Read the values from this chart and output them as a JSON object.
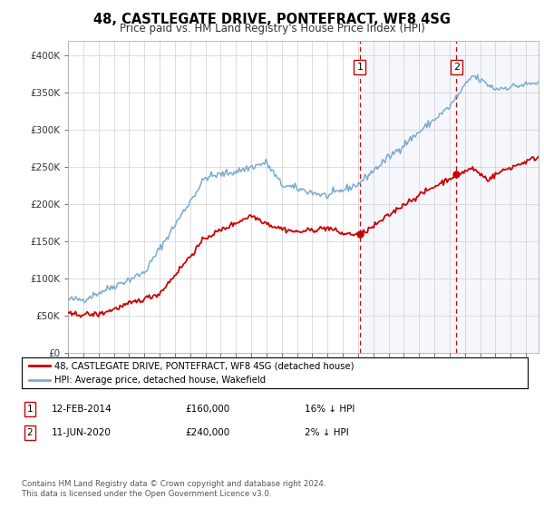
{
  "title": "48, CASTLEGATE DRIVE, PONTEFRACT, WF8 4SG",
  "subtitle": "Price paid vs. HM Land Registry's House Price Index (HPI)",
  "ylabel_ticks": [
    "£0",
    "£50K",
    "£100K",
    "£150K",
    "£200K",
    "£250K",
    "£300K",
    "£350K",
    "£400K"
  ],
  "ytick_values": [
    0,
    50000,
    100000,
    150000,
    200000,
    250000,
    300000,
    350000,
    400000
  ],
  "ylim": [
    0,
    420000
  ],
  "xlim_start": 1995.0,
  "xlim_end": 2025.83,
  "transaction1": {
    "date_num": 2014.12,
    "price": 160000,
    "label": "1",
    "date_str": "12-FEB-2014",
    "pct": "16% ↓ HPI"
  },
  "transaction2": {
    "date_num": 2020.45,
    "price": 240000,
    "label": "2",
    "date_str": "11-JUN-2020",
    "pct": "2% ↓ HPI"
  },
  "red_line_color": "#cc0000",
  "blue_line_color": "#7aabcf",
  "shade_color": "#ddeeff",
  "vline_color": "#cc0000",
  "legend1": "48, CASTLEGATE DRIVE, PONTEFRACT, WF8 4SG (detached house)",
  "legend2": "HPI: Average price, detached house, Wakefield",
  "footnote": "Contains HM Land Registry data © Crown copyright and database right 2024.\nThis data is licensed under the Open Government Licence v3.0.",
  "table_rows": [
    [
      "1",
      "12-FEB-2014",
      "£160,000",
      "16% ↓ HPI"
    ],
    [
      "2",
      "11-JUN-2020",
      "£240,000",
      "2% ↓ HPI"
    ]
  ]
}
